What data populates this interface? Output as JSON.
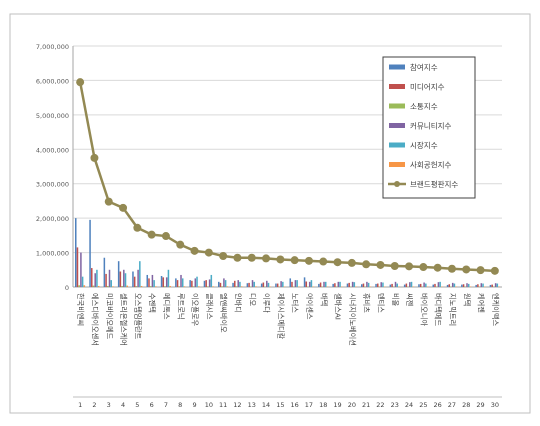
{
  "chart_data": {
    "type": "bar",
    "title": "",
    "xlabel": "",
    "ylabel": "",
    "ylim": [
      0,
      7000000
    ],
    "yticks": [
      "0",
      "1,000,000",
      "2,000,000",
      "3,000,000",
      "4,000,000",
      "5,000,000",
      "6,000,000",
      "7,000,000"
    ],
    "ytick_values": [
      0,
      1000000,
      2000000,
      3000000,
      4000000,
      5000000,
      6000000,
      7000000
    ],
    "grid": true,
    "legend_position": "top-right",
    "categories": [
      "한국비엔씨",
      "에스디바이오센서",
      "미코바이오메드",
      "셀트리온헬스케어",
      "오스템임플란트",
      "수젠텍",
      "메디톡스",
      "루트로닉",
      "이오플로우",
      "클래시스",
      "엘앤씨바이오",
      "인바디",
      "디오",
      "이루다",
      "제이시스메디칼",
      "노터스",
      "아이센스",
      "바텍",
      "셀바스AI",
      "시너지이노베이션",
      "휴비츠",
      "덴티스",
      "비올",
      "씨젠",
      "바이오니아",
      "바디텍메드",
      "지노믹트리",
      "원텍",
      "케어젠",
      "엔케이맥스"
    ],
    "rank_labels": [
      "1",
      "2",
      "3",
      "4",
      "5",
      "6",
      "7",
      "8",
      "9",
      "10",
      "11",
      "12",
      "13",
      "14",
      "15",
      "16",
      "17",
      "18",
      "19",
      "20",
      "21",
      "22",
      "23",
      "24",
      "25",
      "26",
      "27",
      "28",
      "29",
      "30"
    ],
    "series": [
      {
        "name": "참여지수",
        "color": "#4f81bd",
        "values": [
          2000000,
          1950000,
          850000,
          750000,
          450000,
          350000,
          320000,
          250000,
          200000,
          180000,
          150000,
          120000,
          110000,
          100000,
          100000,
          250000,
          280000,
          90000,
          90000,
          100000,
          80000,
          90000,
          70000,
          70000,
          80000,
          70000,
          60000,
          70000,
          60000,
          60000
        ]
      },
      {
        "name": "미디어지수",
        "color": "#c0504d",
        "values": [
          1150000,
          550000,
          380000,
          450000,
          300000,
          250000,
          280000,
          200000,
          180000,
          200000,
          120000,
          180000,
          120000,
          130000,
          100000,
          150000,
          160000,
          130000,
          110000,
          120000,
          100000,
          100000,
          90000,
          100000,
          90000,
          90000,
          80000,
          80000,
          80000,
          70000
        ]
      },
      {
        "name": "소통지수",
        "color": "#9bbb59",
        "values": [
          50000,
          40000,
          30000,
          30000,
          25000,
          25000,
          25000,
          20000,
          20000,
          20000,
          20000,
          20000,
          15000,
          15000,
          15000,
          15000,
          15000,
          15000,
          15000,
          15000,
          15000,
          15000,
          15000,
          15000,
          15000,
          15000,
          15000,
          15000,
          15000,
          15000
        ]
      },
      {
        "name": "커뮤니티지수",
        "color": "#8064a2",
        "values": [
          1000000,
          400000,
          500000,
          500000,
          500000,
          350000,
          280000,
          350000,
          250000,
          220000,
          250000,
          200000,
          200000,
          180000,
          170000,
          200000,
          150000,
          150000,
          150000,
          150000,
          150000,
          140000,
          150000,
          140000,
          130000,
          140000,
          120000,
          110000,
          110000,
          110000
        ]
      },
      {
        "name": "시장지수",
        "color": "#4bacc6",
        "values": [
          300000,
          500000,
          200000,
          400000,
          750000,
          200000,
          500000,
          250000,
          300000,
          350000,
          200000,
          150000,
          150000,
          120000,
          150000,
          200000,
          200000,
          150000,
          150000,
          140000,
          120000,
          130000,
          100000,
          150000,
          100000,
          150000,
          100000,
          90000,
          100000,
          100000
        ]
      },
      {
        "name": "사회공헌지수",
        "color": "#f79646",
        "values": [
          50000,
          30000,
          20000,
          40000,
          30000,
          20000,
          30000,
          20000,
          20000,
          20000,
          20000,
          20000,
          20000,
          15000,
          15000,
          15000,
          15000,
          15000,
          15000,
          15000,
          15000,
          15000,
          15000,
          15000,
          15000,
          15000,
          15000,
          15000,
          15000,
          15000
        ]
      },
      {
        "name": "브랜드평판지수",
        "color": "#938953",
        "line": true,
        "values": [
          5950000,
          3750000,
          2480000,
          2300000,
          1720000,
          1520000,
          1480000,
          1230000,
          1050000,
          1000000,
          900000,
          850000,
          850000,
          830000,
          800000,
          780000,
          760000,
          740000,
          720000,
          700000,
          660000,
          640000,
          610000,
          600000,
          580000,
          560000,
          530000,
          510000,
          490000,
          470000
        ]
      }
    ]
  }
}
